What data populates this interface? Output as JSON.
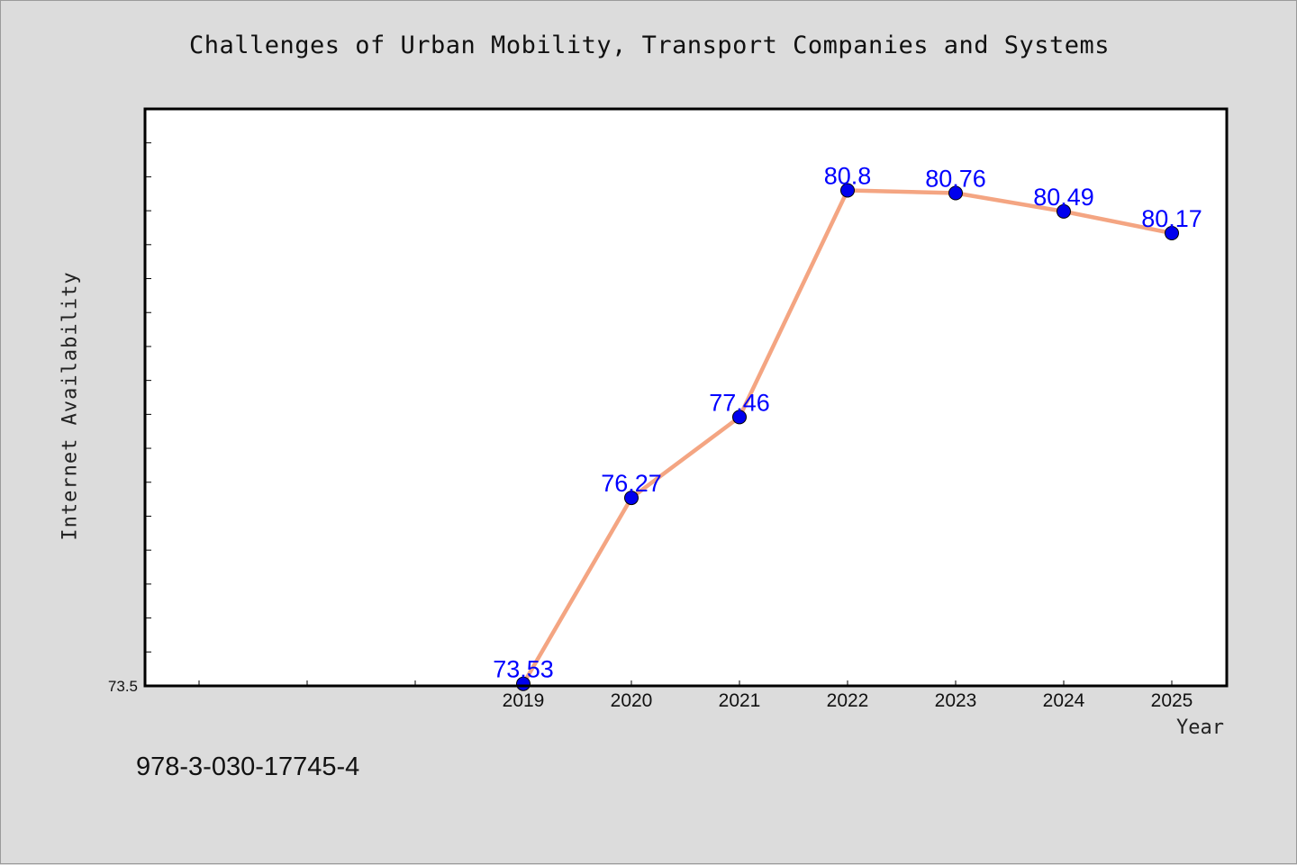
{
  "chart_data": {
    "type": "line",
    "title": "Challenges of Urban Mobility, Transport Companies and Systems",
    "xlabel": "Year",
    "ylabel": "Internet Availability",
    "categories": [
      "2019",
      "2020",
      "2021",
      "2022",
      "2023",
      "2024",
      "2025"
    ],
    "series": [
      {
        "values": [
          73.53,
          76.27,
          77.46,
          80.8,
          80.76,
          80.49,
          80.17
        ],
        "data_labels": [
          "73.53",
          "76.27",
          "77.46",
          "80.8",
          "80.76",
          "80.49",
          "80.17"
        ]
      }
    ],
    "ylim": [
      73.5,
      82.0
    ],
    "ytick_labels": [
      "73.5"
    ],
    "grid": false,
    "legend": "none",
    "colors": {
      "line": "#f4a582",
      "marker": "#0000ee",
      "data_label": "#0000ff",
      "plot_background": "#ffffff",
      "figure_background": "#dcdcdc"
    }
  },
  "footnote": "978-3-030-17745-4"
}
